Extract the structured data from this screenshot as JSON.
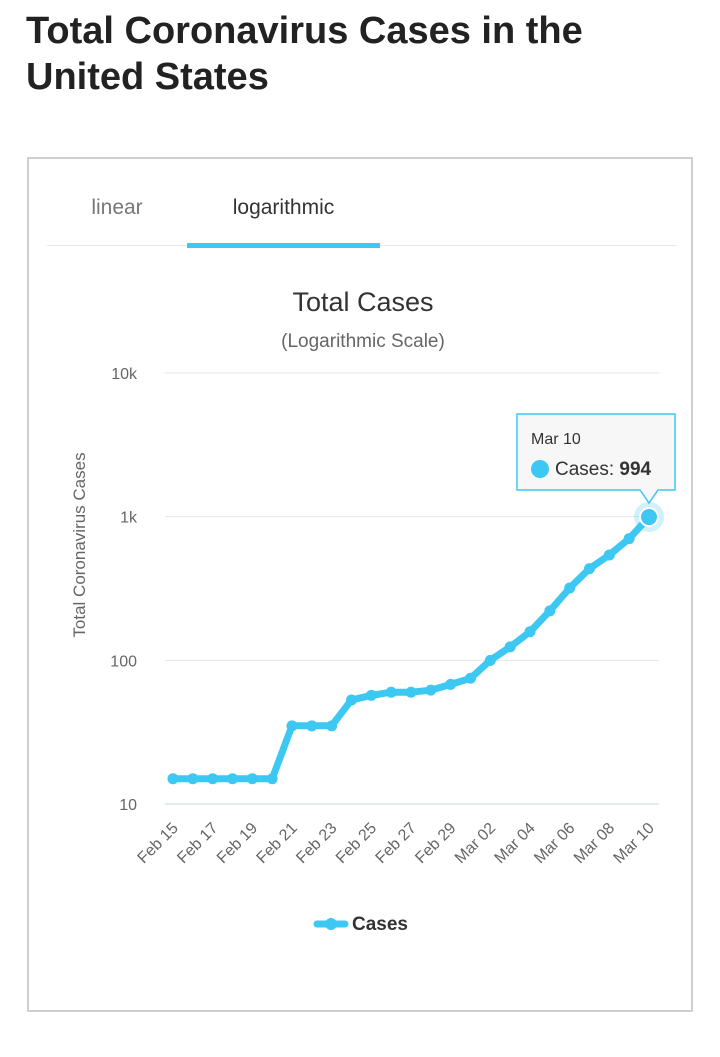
{
  "page_title": "Total Coronavirus Cases in the United States",
  "tabs": [
    {
      "label": "linear",
      "active": false
    },
    {
      "label": "logarithmic",
      "active": true
    }
  ],
  "accent_color": "#3cc8f2",
  "chart_data": {
    "type": "line",
    "title": "Total Cases",
    "subtitle": "(Logarithmic Scale)",
    "ylabel": "Total Coronavirus Cases",
    "xlabel": "",
    "yscale": "log",
    "ylim": [
      10,
      10000
    ],
    "y_ticks": [
      {
        "value": 10,
        "label": "10"
      },
      {
        "value": 100,
        "label": "100"
      },
      {
        "value": 1000,
        "label": "1k"
      },
      {
        "value": 10000,
        "label": "10k"
      }
    ],
    "x_tick_labels": [
      "Feb 15",
      "Feb 17",
      "Feb 19",
      "Feb 21",
      "Feb 23",
      "Feb 25",
      "Feb 27",
      "Feb 29",
      "Mar 02",
      "Mar 04",
      "Mar 06",
      "Mar 08",
      "Mar 10"
    ],
    "grid": true,
    "legend": "bottom",
    "series": [
      {
        "name": "Cases",
        "color": "#3cc8f2",
        "x": [
          "Feb 15",
          "Feb 16",
          "Feb 17",
          "Feb 18",
          "Feb 19",
          "Feb 20",
          "Feb 21",
          "Feb 22",
          "Feb 23",
          "Feb 24",
          "Feb 25",
          "Feb 26",
          "Feb 27",
          "Feb 28",
          "Feb 29",
          "Mar 01",
          "Mar 02",
          "Mar 03",
          "Mar 04",
          "Mar 05",
          "Mar 06",
          "Mar 07",
          "Mar 08",
          "Mar 09",
          "Mar 10"
        ],
        "values": [
          15,
          15,
          15,
          15,
          15,
          15,
          35,
          35,
          35,
          53,
          57,
          60,
          60,
          62,
          68,
          75,
          100,
          124,
          158,
          221,
          319,
          435,
          541,
          704,
          994
        ]
      }
    ],
    "tooltip": {
      "date": "Mar 10",
      "series": "Cases",
      "value": "994"
    }
  }
}
